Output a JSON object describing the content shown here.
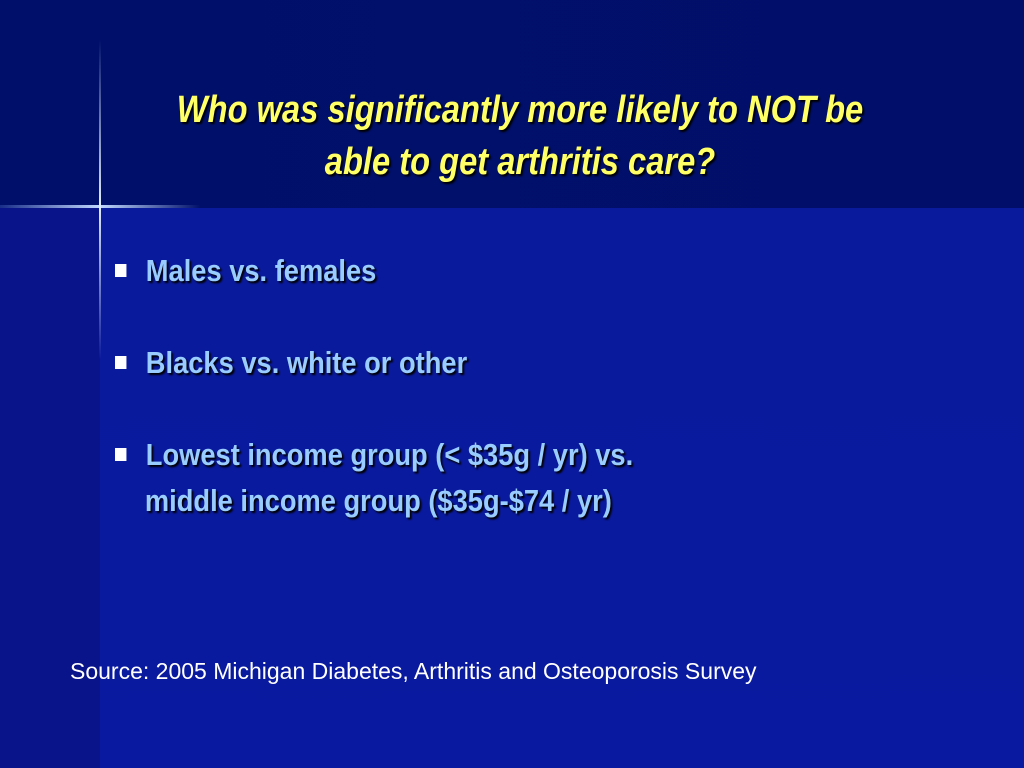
{
  "slide": {
    "title_lines": [
      "Who was significantly more likely to NOT be",
      "able to get arthritis care?"
    ],
    "bullets": [
      [
        "Males vs. females"
      ],
      [
        "Blacks vs. white or other"
      ],
      [
        "Lowest income group (< $35g / yr) vs.",
        "middle income group ($35g-$74 / yr)"
      ]
    ],
    "source": "Source: 2005 Michigan Diabetes, Arthritis and Osteoporosis Survey"
  }
}
